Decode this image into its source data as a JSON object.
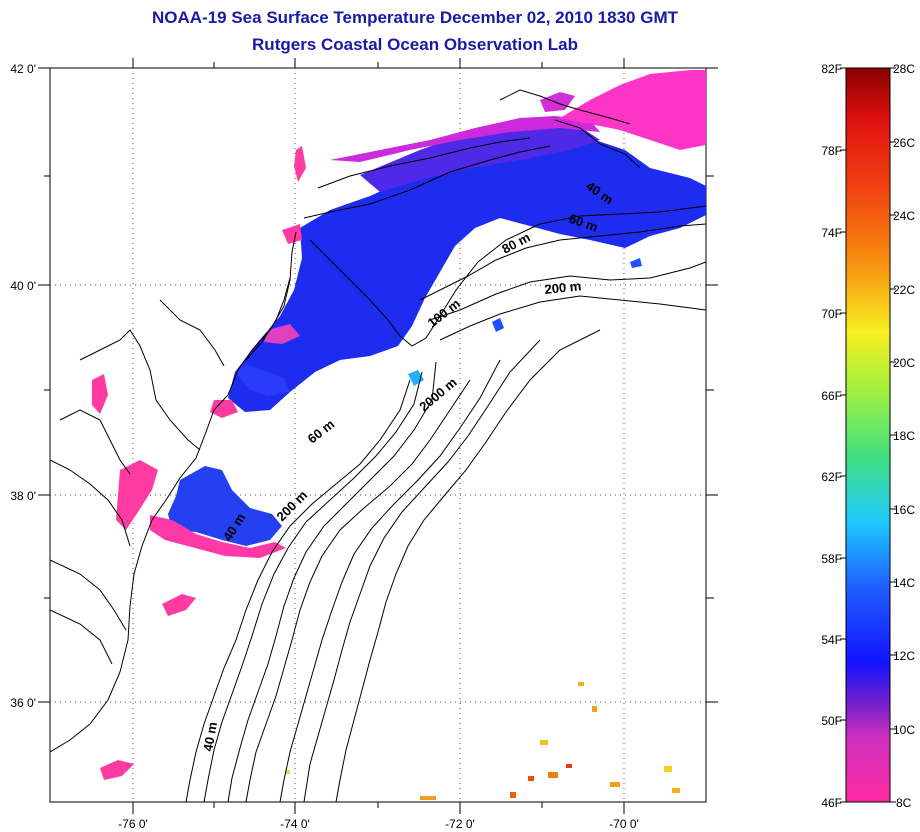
{
  "title": {
    "line1": "NOAA-19 Sea Surface Temperature December 02, 2010 1830 GMT",
    "line2": "Rutgers Coastal Ocean Observation Lab"
  },
  "map": {
    "lat_labels": [
      "42 0'",
      "40 0'",
      "38 0'",
      "36 0'"
    ],
    "lon_labels": [
      "-76 0'",
      "-74 0'",
      "-72 0'",
      "-70 0'"
    ],
    "depth_labels": [
      {
        "text": "40 m"
      },
      {
        "text": "60 m"
      },
      {
        "text": "80 m"
      },
      {
        "text": "200 m"
      },
      {
        "text": "100 m"
      },
      {
        "text": "2000 m"
      },
      {
        "text": "60 m"
      },
      {
        "text": "200 m"
      },
      {
        "text": "40 m"
      },
      {
        "text": "40 m"
      }
    ]
  },
  "colorbar": {
    "f_labels": [
      "82F",
      "78F",
      "74F",
      "70F",
      "66F",
      "62F",
      "58F",
      "54F",
      "50F",
      "46F"
    ],
    "c_labels": [
      "28C",
      "26C",
      "24C",
      "22C",
      "20C",
      "18C",
      "16C",
      "14C",
      "12C",
      "10C",
      "8C"
    ],
    "colors": {
      "low": "#ff2aa0",
      "purple": "#7a20c8",
      "blue": "#1414ff",
      "cyan": "#1ec8ff",
      "green": "#40e080",
      "yellow": "#f8f020",
      "orange": "#f88a10",
      "red": "#e01010",
      "dark_red": "#8a0000"
    }
  }
}
